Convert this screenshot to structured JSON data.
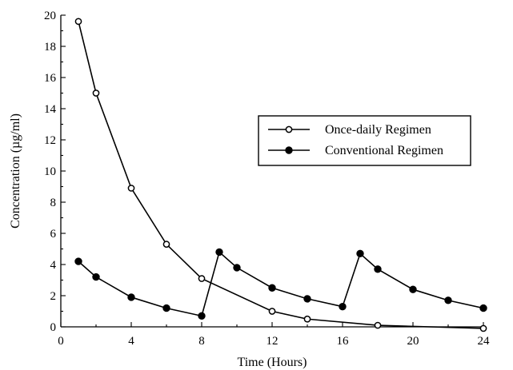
{
  "chart_data": {
    "type": "line",
    "xlabel": "Time (Hours)",
    "ylabel": "Concentration (µg/ml)",
    "xlim": [
      0,
      24
    ],
    "ylim": [
      0,
      20
    ],
    "xticks": [
      0,
      4,
      8,
      12,
      16,
      20,
      24
    ],
    "yticks": [
      0,
      2,
      4,
      6,
      8,
      10,
      12,
      14,
      16,
      18,
      20
    ],
    "grid": false,
    "legend_position": "right",
    "series": [
      {
        "name": "Once-daily Regimen",
        "marker": "open-circle",
        "x": [
          1,
          2,
          4,
          6,
          8,
          12,
          14,
          18,
          24
        ],
        "y": [
          19.6,
          15.0,
          8.9,
          5.3,
          3.1,
          1.0,
          0.5,
          0.1,
          -0.1
        ]
      },
      {
        "name": "Conventional Regimen",
        "marker": "filled-circle",
        "x": [
          1,
          2,
          4,
          6,
          8,
          9,
          10,
          12,
          14,
          16,
          17,
          18,
          20,
          22,
          24
        ],
        "y": [
          4.2,
          3.2,
          1.9,
          1.2,
          0.7,
          4.8,
          3.8,
          2.5,
          1.8,
          1.3,
          4.7,
          3.7,
          2.4,
          1.7,
          1.2
        ]
      }
    ]
  }
}
